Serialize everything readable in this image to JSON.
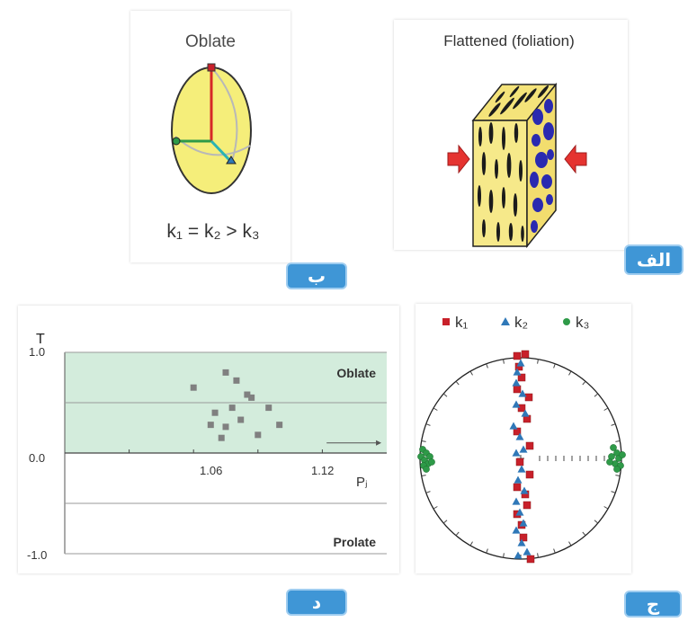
{
  "panel_b": {
    "title": "Oblate",
    "equation": "k₁ = k₂ > k₃"
  },
  "panel_alef": {
    "title": "Flattened (foliation)"
  },
  "panel_jim": {
    "legend": [
      {
        "label": "k₁",
        "color": "#c8202a",
        "shape": "square"
      },
      {
        "label": "k₂",
        "color": "#2f78b8",
        "shape": "triangle"
      },
      {
        "label": "k₃",
        "color": "#2e9a48",
        "shape": "circle"
      }
    ]
  },
  "badges": {
    "alef": "الف",
    "be": "ب",
    "jim": "ج",
    "dal": "د"
  },
  "chart_data": {
    "type": "scatter",
    "ylabel": "T",
    "xlabel": "Pⱼ",
    "ylim": [
      -1.0,
      1.0
    ],
    "xlim": [
      1.0,
      1.15
    ],
    "ytick_labels": [
      "1.0",
      "0.0",
      "-1.0"
    ],
    "xtick_labels": [
      "1.06",
      "1.12"
    ],
    "region_labels": {
      "upper": "Oblate",
      "lower": "Prolate"
    },
    "points": [
      {
        "x": 1.06,
        "y": 0.65
      },
      {
        "x": 1.075,
        "y": 0.8
      },
      {
        "x": 1.08,
        "y": 0.72
      },
      {
        "x": 1.085,
        "y": 0.58
      },
      {
        "x": 1.087,
        "y": 0.55
      },
      {
        "x": 1.078,
        "y": 0.45
      },
      {
        "x": 1.095,
        "y": 0.45
      },
      {
        "x": 1.07,
        "y": 0.4
      },
      {
        "x": 1.082,
        "y": 0.33
      },
      {
        "x": 1.068,
        "y": 0.28
      },
      {
        "x": 1.075,
        "y": 0.26
      },
      {
        "x": 1.1,
        "y": 0.28
      },
      {
        "x": 1.073,
        "y": 0.15
      },
      {
        "x": 1.09,
        "y": 0.18
      }
    ]
  }
}
